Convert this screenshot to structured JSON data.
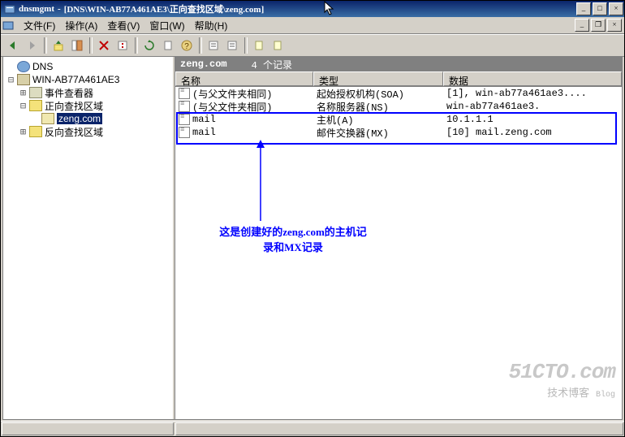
{
  "window": {
    "app_name": "dnsmgmt",
    "title_path": "[DNS\\WIN-AB77A461AE3\\正向查找区域\\zeng.com]"
  },
  "menus": {
    "file": "文件(F)",
    "action": "操作(A)",
    "view": "查看(V)",
    "window": "窗口(W)",
    "help": "帮助(H)"
  },
  "tree": {
    "root": "DNS",
    "server": "WIN-AB77A461AE3",
    "event_viewer": "事件查看器",
    "forward": "正向查找区域",
    "zone": "zeng.com",
    "reverse": "反向查找区域"
  },
  "pathbar": {
    "name": "zeng.com",
    "count": "4 个记录"
  },
  "columns": {
    "name": "名称",
    "type": "类型",
    "data": "数据"
  },
  "records": [
    {
      "name": "(与父文件夹相同)",
      "type": "起始授权机构(SOA)",
      "data": "[1], win-ab77a461ae3...."
    },
    {
      "name": "(与父文件夹相同)",
      "type": "名称服务器(NS)",
      "data": "win-ab77a461ae3."
    },
    {
      "name": "mail",
      "type": "主机(A)",
      "data": "10.1.1.1"
    },
    {
      "name": "mail",
      "type": "邮件交换器(MX)",
      "data": "[10]  mail.zeng.com"
    }
  ],
  "annotation": "这是创建好的zeng.com的主机记录和MX记录",
  "watermark": {
    "line1": "51CTO.com",
    "line2": "技术博客",
    "line3": "Blog"
  },
  "colors": {
    "titlebar_start": "#0a246a",
    "titlebar_end": "#3a6ea5",
    "ui_face": "#d4d0c8",
    "highlight": "#0000ff",
    "selection": "#0a246a"
  }
}
